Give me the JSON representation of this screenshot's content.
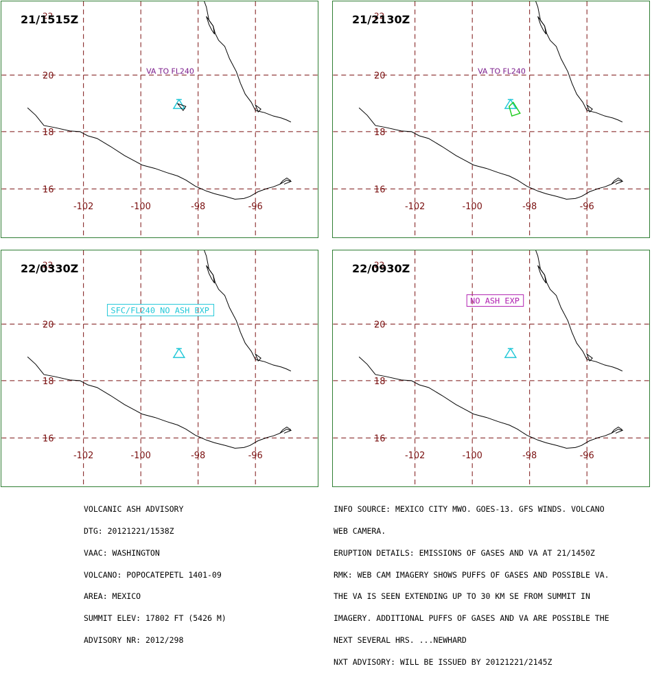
{
  "panels": [
    {
      "time": "21/1515Z",
      "label": "VA TO FL240",
      "label_style": "plain",
      "label_color": "#7a1a8a",
      "ash": "small"
    },
    {
      "time": "21/2130Z",
      "label": "VA TO FL240",
      "label_style": "plain",
      "label_color": "#7a1a8a",
      "ash": "green"
    },
    {
      "time": "22/0330Z",
      "label": "SFC/FL240 NO ASH EXP",
      "label_style": "boxed",
      "label_color": "#22c8d8",
      "ash": "none"
    },
    {
      "time": "22/0930Z",
      "label": "NO ASH EXP",
      "label_style": "boxed",
      "label_color": "#b020b0",
      "ash": "none"
    }
  ],
  "axes": {
    "lon_labels": [
      "-102",
      "-100",
      "-98",
      "-96"
    ],
    "lat_labels": [
      "20",
      "18",
      "16"
    ],
    "top_lat_label": "22"
  },
  "colors": {
    "grid": "#7a1010",
    "frame": "#2e7d32",
    "volcano": "#22c8d8",
    "ash_green": "#22cc22"
  },
  "advisory_left": [
    "VOLCANIC ASH ADVISORY",
    "DTG: 20121221/1538Z",
    "VAAC: WASHINGTON",
    "VOLCANO: POPOCATEPETL 1401-09",
    "AREA: MEXICO",
    "SUMMIT ELEV: 17802 FT (5426 M)",
    "ADVISORY NR: 2012/298"
  ],
  "advisory_right": [
    "INFO SOURCE: MEXICO CITY MWO. GOES-13. GFS WINDS. VOLCANO",
    "WEB CAMERA.",
    "ERUPTION DETAILS: EMISSIONS OF GASES AND VA AT 21/1450Z",
    "RMK: WEB CAM IMAGERY SHOWS PUFFS OF GASES AND POSSIBLE VA.",
    "THE VA IS SEEN EXTENDING UP TO 30 KM SE FROM SUMMIT IN",
    "IMAGERY. ADDITIONAL PUFFS OF GASES AND VA ARE POSSIBLE THE",
    "NEXT SEVERAL HRS. ...NEWHARD",
    "NXT ADVISORY: WILL BE ISSUED BY 20121221/2145Z"
  ]
}
